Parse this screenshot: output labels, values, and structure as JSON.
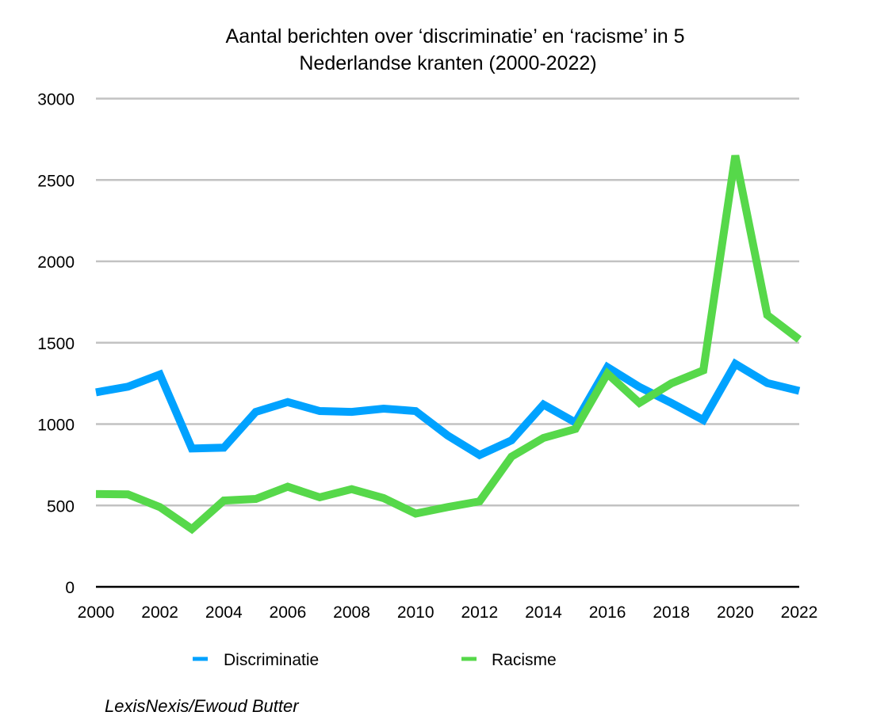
{
  "chart_data": {
    "type": "line",
    "title": [
      "Aantal berichten over ‘discriminatie’ en ‘racisme’ in 5",
      "Nederlandse kranten (2000-2022)"
    ],
    "xlabel": "",
    "ylabel": "",
    "x": [
      2000,
      2001,
      2002,
      2003,
      2004,
      2005,
      2006,
      2007,
      2008,
      2009,
      2010,
      2011,
      2012,
      2013,
      2014,
      2015,
      2016,
      2017,
      2018,
      2019,
      2020,
      2021,
      2022
    ],
    "xlim": [
      2000,
      2022
    ],
    "ylim": [
      0,
      3000
    ],
    "x_ticks": [
      "2000",
      "2002",
      "2004",
      "2006",
      "2008",
      "2010",
      "2012",
      "2014",
      "2016",
      "2018",
      "2020",
      "2022"
    ],
    "x_tick_values": [
      2000,
      2002,
      2004,
      2006,
      2008,
      2010,
      2012,
      2014,
      2016,
      2018,
      2020,
      2022
    ],
    "y_ticks": [
      "0",
      "500",
      "1000",
      "1500",
      "2000",
      "2500",
      "3000"
    ],
    "y_tick_values": [
      0,
      500,
      1000,
      1500,
      2000,
      2500,
      3000
    ],
    "grid": "horizontal",
    "legend_position": "bottom",
    "series": [
      {
        "name": "Discriminatie",
        "color": "#00A2FF",
        "values": [
          1195,
          1230,
          1305,
          850,
          855,
          1075,
          1135,
          1080,
          1075,
          1095,
          1080,
          930,
          810,
          900,
          1120,
          1010,
          1350,
          1228,
          1130,
          1025,
          1370,
          1252,
          1204
        ]
      },
      {
        "name": "Racisme",
        "color": "#56D84A",
        "values": [
          570,
          568,
          490,
          355,
          530,
          540,
          615,
          550,
          600,
          545,
          450,
          490,
          525,
          800,
          915,
          970,
          1310,
          1130,
          1250,
          1330,
          2650,
          1670,
          1520
        ]
      }
    ],
    "source": "LexisNexis/Ewoud Butter"
  }
}
